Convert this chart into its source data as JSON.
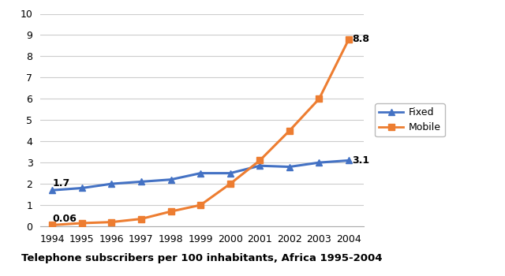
{
  "years": [
    1994,
    1995,
    1996,
    1997,
    1998,
    1999,
    2000,
    2001,
    2002,
    2003,
    2004
  ],
  "fixed": [
    1.7,
    1.8,
    2.0,
    2.1,
    2.2,
    2.5,
    2.5,
    2.85,
    2.8,
    3.0,
    3.1
  ],
  "mobile": [
    0.06,
    0.15,
    0.2,
    0.35,
    0.7,
    1.0,
    2.0,
    3.1,
    4.5,
    6.0,
    8.8
  ],
  "fixed_color": "#4472c4",
  "mobile_color": "#ed7d31",
  "fixed_label": "Fixed",
  "mobile_label": "Mobile",
  "xlabel": "Telephone subscribers per 100 inhabitants, Africa 1995-2004",
  "ylim": [
    0,
    10
  ],
  "yticks": [
    0,
    1,
    2,
    3,
    4,
    5,
    6,
    7,
    8,
    9,
    10
  ],
  "background_color": "#ffffff",
  "grid_color": "#cccccc"
}
